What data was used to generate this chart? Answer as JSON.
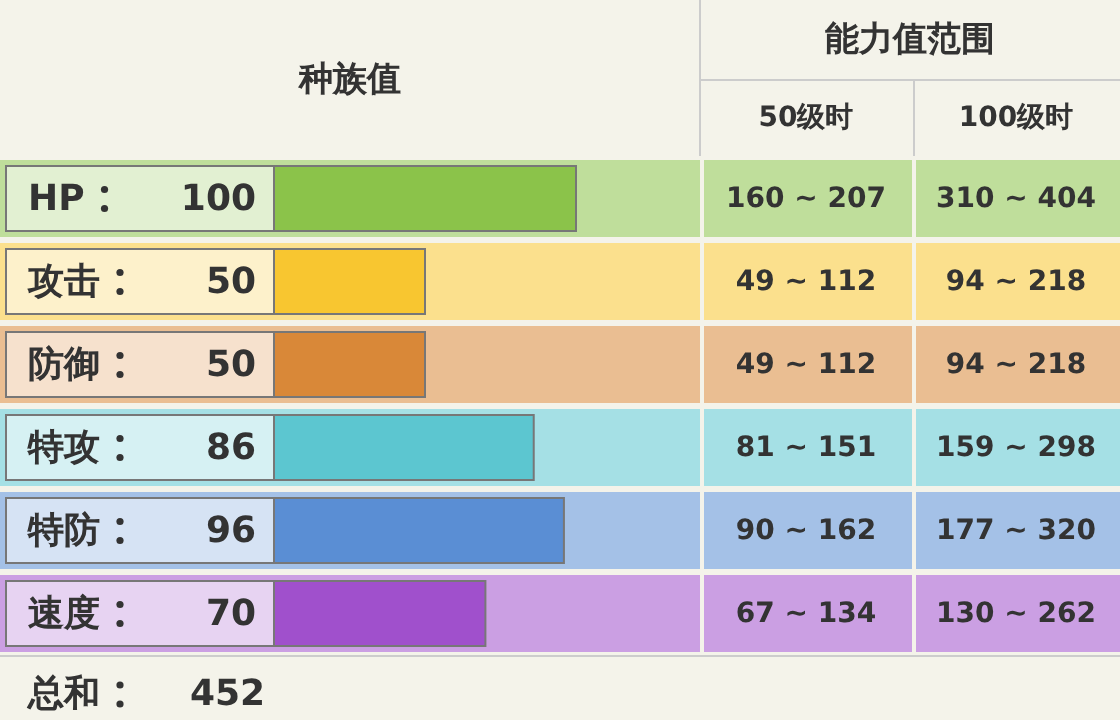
{
  "chart_data": {
    "type": "bar",
    "orientation": "horizontal",
    "title": "种族值",
    "categories": [
      "HP",
      "攻击",
      "防御",
      "特攻",
      "特防",
      "速度"
    ],
    "values": [
      100,
      50,
      50,
      86,
      96,
      70
    ],
    "colors": [
      "#8bc34a",
      "#f8c630",
      "#d98838",
      "#5cc6d0",
      "#5a8ed4",
      "#a050cc"
    ],
    "data_labels": true,
    "annotations": [
      "能力值范围",
      "50级时",
      "100级时",
      "160 ~ 207",
      "310 ~ 404",
      "49 ~ 112",
      "94 ~ 218",
      "49 ~ 112",
      "94 ~ 218",
      "81 ~ 151",
      "159 ~ 298",
      "90 ~ 162",
      "177 ~ 320",
      "67 ~ 134",
      "130 ~ 262",
      "总和",
      "452"
    ]
  }
}
